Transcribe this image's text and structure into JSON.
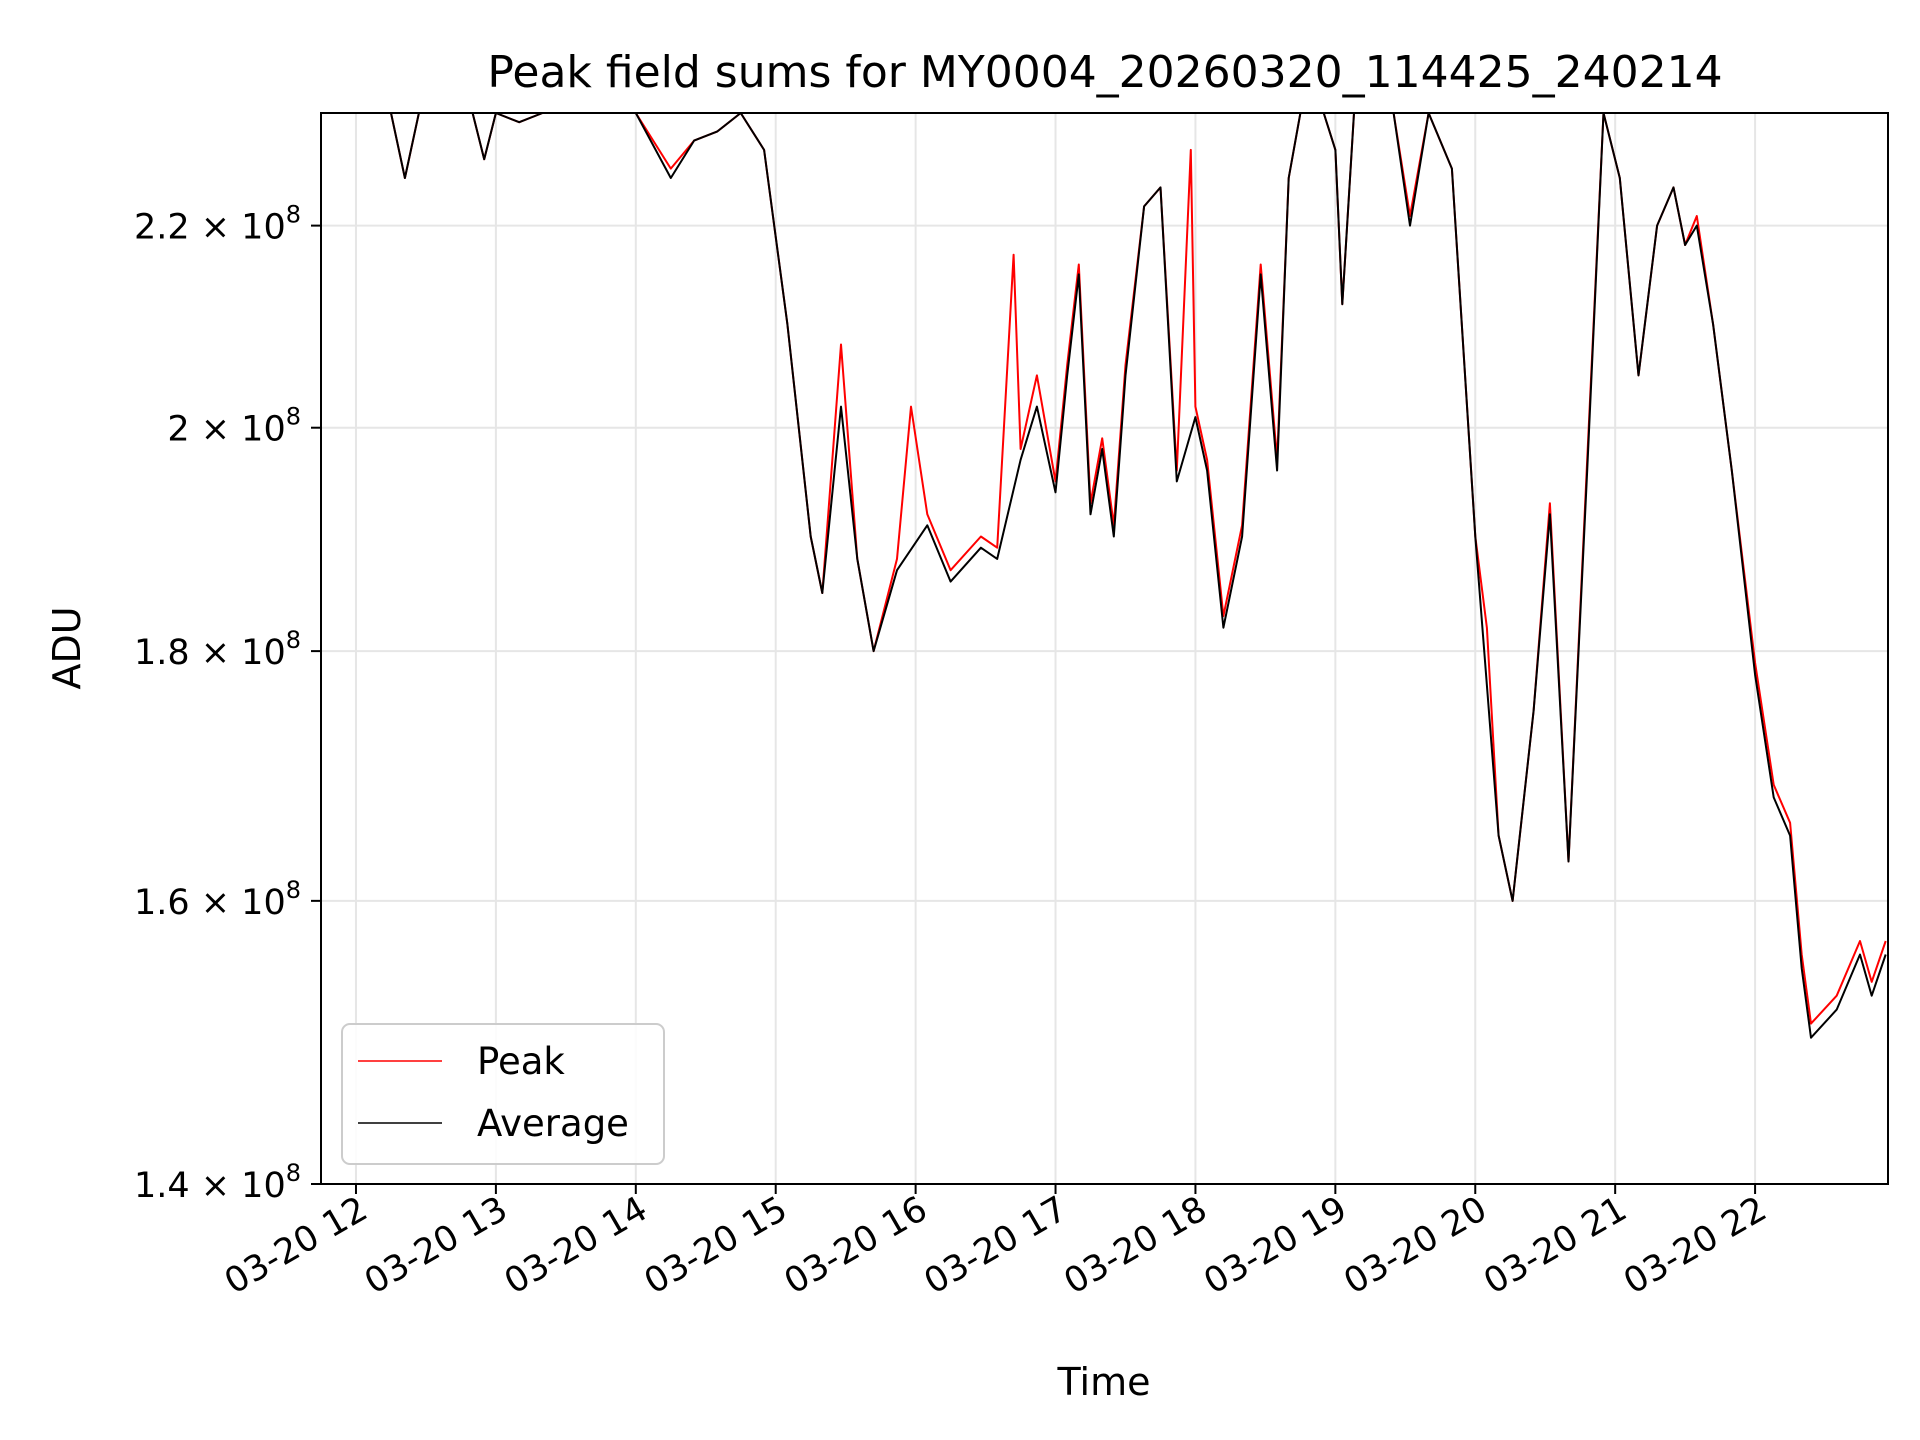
{
  "chart_data": {
    "type": "line",
    "title": "Peak field sums for MY0004_20260320_114425_240214",
    "xlabel": "Time",
    "ylabel": "ADU",
    "y_scale": "log",
    "grid": true,
    "legend_position": "lower-left",
    "xlim": [
      "2026-03-20 11:45",
      "2026-03-20 22:57"
    ],
    "ylim": [
      140000000.0,
      232000000.0
    ],
    "x_ticks": [
      {
        "value": "2026-03-20 12:00",
        "label": "03-20 12"
      },
      {
        "value": "2026-03-20 13:00",
        "label": "03-20 13"
      },
      {
        "value": "2026-03-20 14:00",
        "label": "03-20 14"
      },
      {
        "value": "2026-03-20 15:00",
        "label": "03-20 15"
      },
      {
        "value": "2026-03-20 16:00",
        "label": "03-20 16"
      },
      {
        "value": "2026-03-20 17:00",
        "label": "03-20 17"
      },
      {
        "value": "2026-03-20 18:00",
        "label": "03-20 18"
      },
      {
        "value": "2026-03-20 19:00",
        "label": "03-20 19"
      },
      {
        "value": "2026-03-20 20:00",
        "label": "03-20 20"
      },
      {
        "value": "2026-03-20 21:00",
        "label": "03-20 21"
      },
      {
        "value": "2026-03-20 22:00",
        "label": "03-20 22"
      }
    ],
    "y_ticks": [
      {
        "value": 140000000.0,
        "mantissa": "1.4",
        "exponent": "8"
      },
      {
        "value": 160000000.0,
        "mantissa": "1.6",
        "exponent": "8"
      },
      {
        "value": 180000000.0,
        "mantissa": "1.8",
        "exponent": "8"
      },
      {
        "value": 200000000.0,
        "mantissa": "2",
        "exponent": "8"
      },
      {
        "value": 220000000.0,
        "mantissa": "2.2",
        "exponent": "8"
      }
    ],
    "series": [
      {
        "name": "Average",
        "color": "#000000",
        "points": [
          [
            "2026-03-20 11:45",
            232000000.0
          ],
          [
            "2026-03-20 12:00",
            232000000.0
          ],
          [
            "2026-03-20 12:15",
            232000000.0
          ],
          [
            "2026-03-20 12:21",
            225000000.0
          ],
          [
            "2026-03-20 12:27",
            232000000.0
          ],
          [
            "2026-03-20 12:50",
            232000000.0
          ],
          [
            "2026-03-20 12:55",
            227000000.0
          ],
          [
            "2026-03-20 13:00",
            232000000.0
          ],
          [
            "2026-03-20 13:10",
            231000000.0
          ],
          [
            "2026-03-20 13:20",
            232000000.0
          ],
          [
            "2026-03-20 14:00",
            232000000.0
          ],
          [
            "2026-03-20 14:15",
            225000000.0
          ],
          [
            "2026-03-20 14:25",
            229000000.0
          ],
          [
            "2026-03-20 14:35",
            230000000.0
          ],
          [
            "2026-03-20 14:45",
            232000000.0
          ],
          [
            "2026-03-20 14:55",
            228000000.0
          ],
          [
            "2026-03-20 15:05",
            210000000.0
          ],
          [
            "2026-03-20 15:15",
            190000000.0
          ],
          [
            "2026-03-20 15:20",
            185000000.0
          ],
          [
            "2026-03-20 15:28",
            202000000.0
          ],
          [
            "2026-03-20 15:35",
            188000000.0
          ],
          [
            "2026-03-20 15:42",
            180000000.0
          ],
          [
            "2026-03-20 15:52",
            187000000.0
          ],
          [
            "2026-03-20 16:05",
            191000000.0
          ],
          [
            "2026-03-20 16:15",
            186000000.0
          ],
          [
            "2026-03-20 16:28",
            189000000.0
          ],
          [
            "2026-03-20 16:35",
            188000000.0
          ],
          [
            "2026-03-20 16:45",
            197000000.0
          ],
          [
            "2026-03-20 16:52",
            202000000.0
          ],
          [
            "2026-03-20 17:00",
            194000000.0
          ],
          [
            "2026-03-20 17:05",
            205000000.0
          ],
          [
            "2026-03-20 17:10",
            215000000.0
          ],
          [
            "2026-03-20 17:15",
            192000000.0
          ],
          [
            "2026-03-20 17:20",
            198000000.0
          ],
          [
            "2026-03-20 17:25",
            190000000.0
          ],
          [
            "2026-03-20 17:30",
            205000000.0
          ],
          [
            "2026-03-20 17:38",
            222000000.0
          ],
          [
            "2026-03-20 17:45",
            224000000.0
          ],
          [
            "2026-03-20 17:52",
            195000000.0
          ],
          [
            "2026-03-20 18:00",
            201000000.0
          ],
          [
            "2026-03-20 18:05",
            196000000.0
          ],
          [
            "2026-03-20 18:12",
            182000000.0
          ],
          [
            "2026-03-20 18:20",
            190000000.0
          ],
          [
            "2026-03-20 18:28",
            215000000.0
          ],
          [
            "2026-03-20 18:35",
            196000000.0
          ],
          [
            "2026-03-20 18:40",
            225000000.0
          ],
          [
            "2026-03-20 18:45",
            232000000.0
          ],
          [
            "2026-03-20 18:55",
            232000000.0
          ],
          [
            "2026-03-20 19:00",
            228000000.0
          ],
          [
            "2026-03-20 19:03",
            212000000.0
          ],
          [
            "2026-03-20 19:08",
            232000000.0
          ],
          [
            "2026-03-20 19:15",
            232000000.0
          ],
          [
            "2026-03-20 19:25",
            232000000.0
          ],
          [
            "2026-03-20 19:32",
            220000000.0
          ],
          [
            "2026-03-20 19:40",
            232000000.0
          ],
          [
            "2026-03-20 19:50",
            226000000.0
          ],
          [
            "2026-03-20 20:00",
            190000000.0
          ],
          [
            "2026-03-20 20:10",
            165000000.0
          ],
          [
            "2026-03-20 20:16",
            160000000.0
          ],
          [
            "2026-03-20 20:25",
            175000000.0
          ],
          [
            "2026-03-20 20:32",
            192000000.0
          ],
          [
            "2026-03-20 20:40",
            163000000.0
          ],
          [
            "2026-03-20 20:48",
            196000000.0
          ],
          [
            "2026-03-20 20:55",
            232000000.0
          ],
          [
            "2026-03-20 21:02",
            225000000.0
          ],
          [
            "2026-03-20 21:10",
            205000000.0
          ],
          [
            "2026-03-20 21:18",
            220000000.0
          ],
          [
            "2026-03-20 21:25",
            224000000.0
          ],
          [
            "2026-03-20 21:30",
            218000000.0
          ],
          [
            "2026-03-20 21:35",
            220000000.0
          ],
          [
            "2026-03-20 21:42",
            210000000.0
          ],
          [
            "2026-03-20 21:50",
            196000000.0
          ],
          [
            "2026-03-20 22:00",
            178000000.0
          ],
          [
            "2026-03-20 22:08",
            168000000.0
          ],
          [
            "2026-03-20 22:15",
            165000000.0
          ],
          [
            "2026-03-20 22:20",
            155000000.0
          ],
          [
            "2026-03-20 22:24",
            150000000.0
          ],
          [
            "2026-03-20 22:35",
            152000000.0
          ],
          [
            "2026-03-20 22:45",
            156000000.0
          ],
          [
            "2026-03-20 22:50",
            153000000.0
          ],
          [
            "2026-03-20 22:56",
            156000000.0
          ]
        ]
      },
      {
        "name": "Peak",
        "color": "#ff0000",
        "points": [
          [
            "2026-03-20 11:45",
            232000000.0
          ],
          [
            "2026-03-20 12:00",
            232000000.0
          ],
          [
            "2026-03-20 12:15",
            232000000.0
          ],
          [
            "2026-03-20 12:21",
            225000000.0
          ],
          [
            "2026-03-20 12:27",
            232000000.0
          ],
          [
            "2026-03-20 12:50",
            232000000.0
          ],
          [
            "2026-03-20 12:55",
            227000000.0
          ],
          [
            "2026-03-20 13:00",
            232000000.0
          ],
          [
            "2026-03-20 13:10",
            231000000.0
          ],
          [
            "2026-03-20 13:20",
            232000000.0
          ],
          [
            "2026-03-20 14:00",
            232000000.0
          ],
          [
            "2026-03-20 14:15",
            226000000.0
          ],
          [
            "2026-03-20 14:25",
            229000000.0
          ],
          [
            "2026-03-20 14:35",
            230000000.0
          ],
          [
            "2026-03-20 14:45",
            232000000.0
          ],
          [
            "2026-03-20 14:55",
            228000000.0
          ],
          [
            "2026-03-20 15:05",
            210000000.0
          ],
          [
            "2026-03-20 15:15",
            190000000.0
          ],
          [
            "2026-03-20 15:20",
            185000000.0
          ],
          [
            "2026-03-20 15:28",
            208000000.0
          ],
          [
            "2026-03-20 15:35",
            188000000.0
          ],
          [
            "2026-03-20 15:42",
            180000000.0
          ],
          [
            "2026-03-20 15:52",
            188000000.0
          ],
          [
            "2026-03-20 15:58",
            202000000.0
          ],
          [
            "2026-03-20 16:05",
            192000000.0
          ],
          [
            "2026-03-20 16:15",
            187000000.0
          ],
          [
            "2026-03-20 16:28",
            190000000.0
          ],
          [
            "2026-03-20 16:35",
            189000000.0
          ],
          [
            "2026-03-20 16:42",
            217000000.0
          ],
          [
            "2026-03-20 16:45",
            198000000.0
          ],
          [
            "2026-03-20 16:52",
            205000000.0
          ],
          [
            "2026-03-20 17:00",
            195000000.0
          ],
          [
            "2026-03-20 17:05",
            206000000.0
          ],
          [
            "2026-03-20 17:10",
            216000000.0
          ],
          [
            "2026-03-20 17:15",
            193000000.0
          ],
          [
            "2026-03-20 17:20",
            199000000.0
          ],
          [
            "2026-03-20 17:25",
            191000000.0
          ],
          [
            "2026-03-20 17:30",
            206000000.0
          ],
          [
            "2026-03-20 17:38",
            222000000.0
          ],
          [
            "2026-03-20 17:45",
            224000000.0
          ],
          [
            "2026-03-20 17:52",
            196000000.0
          ],
          [
            "2026-03-20 17:58",
            228000000.0
          ],
          [
            "2026-03-20 18:00",
            202000000.0
          ],
          [
            "2026-03-20 18:05",
            197000000.0
          ],
          [
            "2026-03-20 18:12",
            183000000.0
          ],
          [
            "2026-03-20 18:20",
            191000000.0
          ],
          [
            "2026-03-20 18:28",
            216000000.0
          ],
          [
            "2026-03-20 18:35",
            197000000.0
          ],
          [
            "2026-03-20 18:40",
            225000000.0
          ],
          [
            "2026-03-20 18:45",
            232000000.0
          ],
          [
            "2026-03-20 18:55",
            232000000.0
          ],
          [
            "2026-03-20 19:00",
            228000000.0
          ],
          [
            "2026-03-20 19:03",
            212000000.0
          ],
          [
            "2026-03-20 19:08",
            232000000.0
          ],
          [
            "2026-03-20 19:15",
            232000000.0
          ],
          [
            "2026-03-20 19:25",
            232000000.0
          ],
          [
            "2026-03-20 19:32",
            221000000.0
          ],
          [
            "2026-03-20 19:40",
            232000000.0
          ],
          [
            "2026-03-20 19:50",
            226000000.0
          ],
          [
            "2026-03-20 20:00",
            190000000.0
          ],
          [
            "2026-03-20 20:05",
            182000000.0
          ],
          [
            "2026-03-20 20:10",
            165000000.0
          ],
          [
            "2026-03-20 20:16",
            160000000.0
          ],
          [
            "2026-03-20 20:25",
            175000000.0
          ],
          [
            "2026-03-20 20:32",
            193000000.0
          ],
          [
            "2026-03-20 20:40",
            163000000.0
          ],
          [
            "2026-03-20 20:48",
            197000000.0
          ],
          [
            "2026-03-20 20:55",
            232000000.0
          ],
          [
            "2026-03-20 21:02",
            225000000.0
          ],
          [
            "2026-03-20 21:10",
            205000000.0
          ],
          [
            "2026-03-20 21:18",
            220000000.0
          ],
          [
            "2026-03-20 21:25",
            224000000.0
          ],
          [
            "2026-03-20 21:30",
            218000000.0
          ],
          [
            "2026-03-20 21:35",
            221000000.0
          ],
          [
            "2026-03-20 21:42",
            210000000.0
          ],
          [
            "2026-03-20 21:50",
            196000000.0
          ],
          [
            "2026-03-20 22:00",
            179000000.0
          ],
          [
            "2026-03-20 22:08",
            169000000.0
          ],
          [
            "2026-03-20 22:15",
            166000000.0
          ],
          [
            "2026-03-20 22:20",
            156000000.0
          ],
          [
            "2026-03-20 22:24",
            151000000.0
          ],
          [
            "2026-03-20 22:35",
            153000000.0
          ],
          [
            "2026-03-20 22:45",
            157000000.0
          ],
          [
            "2026-03-20 22:50",
            154000000.0
          ],
          [
            "2026-03-20 22:56",
            157000000.0
          ]
        ]
      }
    ]
  }
}
